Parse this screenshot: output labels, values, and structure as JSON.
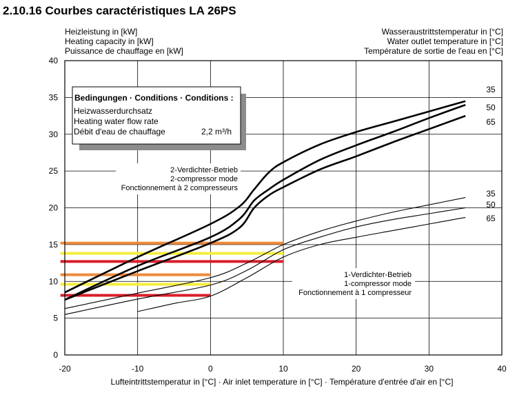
{
  "page": {
    "title": "2.10.16 Courbes caractéristiques LA 26PS",
    "ylabel_lines": [
      "Heizleistung in [kW]",
      "Heating capacity in [kW]",
      "Puissance de chauffage en [kW]"
    ],
    "right_label_lines": [
      "Wasseraustrittstemperatur in [°C]",
      "Water outlet temperature in [°C]",
      "Température de sortie de l'eau en [°C]"
    ]
  },
  "chart_data": {
    "type": "line",
    "title": "Courbes caractéristiques LA 26PS",
    "xlabel": "Lufteintrittstemperatur in [°C] · Air inlet temperature in [°C] · Température d'entrée d'air en [°C]",
    "ylabel": "Heizleistung in [kW] / Heating capacity in [kW] / Puissance de chauffage en [kW]",
    "xlim": [
      -20,
      40
    ],
    "ylim": [
      0,
      40
    ],
    "xticks": [
      -20,
      -10,
      0,
      10,
      20,
      30,
      40
    ],
    "yticks": [
      0,
      5,
      10,
      15,
      20,
      25,
      30,
      35,
      40
    ],
    "grid": true,
    "conditions_box": {
      "header": "Bedingungen · Conditions · Conditions :",
      "line1": "Heizwasserdurchsatz",
      "line2": "Heating water flow rate",
      "line3": "Débit d'eau de chauffage",
      "value": "2,2 m³/h"
    },
    "mode_labels": {
      "two_compressor": [
        "2-Verdichter-Betrieb",
        "2-compressor mode",
        "Fonctionnement à 2 compresseurs"
      ],
      "one_compressor": [
        "1-Verdichter-Betrieb",
        "1-compressor mode",
        "Fonctionnement à 1 compresseur"
      ]
    },
    "series": [
      {
        "name": "35",
        "mode": "2-compressor",
        "x": [
          -20,
          -10,
          0,
          4,
          6,
          8,
          10,
          15,
          20,
          25,
          30,
          35
        ],
        "y": [
          8.5,
          13.3,
          17.8,
          20.2,
          22.5,
          24.8,
          26.2,
          28.6,
          30.3,
          31.7,
          33.1,
          34.5
        ]
      },
      {
        "name": "50",
        "mode": "2-compressor",
        "x": [
          -20,
          -10,
          0,
          4,
          6,
          8,
          10,
          15,
          20,
          25,
          30,
          35
        ],
        "y": [
          7.5,
          12.1,
          16.0,
          18.5,
          21.0,
          22.5,
          23.8,
          26.5,
          28.5,
          30.3,
          32.2,
          34.0
        ]
      },
      {
        "name": "65",
        "mode": "2-compressor",
        "x": [
          -20,
          -10,
          0,
          4,
          6,
          8,
          10,
          15,
          20,
          25,
          30,
          35
        ],
        "y": [
          7.5,
          11.4,
          15.2,
          17.3,
          20.0,
          21.7,
          22.8,
          25.2,
          27.0,
          28.9,
          30.7,
          32.5
        ]
      },
      {
        "name": "35",
        "mode": "1-compressor",
        "x": [
          -20,
          -10,
          0,
          5,
          10,
          15,
          20,
          25,
          30,
          35
        ],
        "y": [
          6.3,
          8.4,
          10.5,
          12.5,
          15.0,
          16.8,
          18.2,
          19.4,
          20.4,
          21.4
        ]
      },
      {
        "name": "50",
        "mode": "1-compressor",
        "x": [
          -20,
          -10,
          0,
          5,
          10,
          15,
          20,
          25,
          30,
          35
        ],
        "y": [
          5.5,
          7.6,
          9.5,
          11.5,
          14.3,
          16.0,
          17.4,
          18.4,
          19.2,
          20.0
        ]
      },
      {
        "name": "65",
        "mode": "1-compressor",
        "x": [
          -10,
          -5,
          0,
          5,
          10,
          15,
          20,
          25,
          30,
          35
        ],
        "y": [
          5.9,
          7.0,
          8.0,
          10.5,
          13.3,
          15.0,
          16.0,
          16.9,
          17.8,
          18.7
        ]
      }
    ],
    "highlight_lines": [
      {
        "y": 15.2,
        "x_start": -20.6,
        "x_end": 10,
        "color": "#ef8a3c"
      },
      {
        "y": 13.8,
        "x_start": -20.6,
        "x_end": 10,
        "color": "#f5ee3c"
      },
      {
        "y": 12.7,
        "x_start": -20.6,
        "x_end": 10,
        "color": "#d81f2a"
      },
      {
        "y": 10.9,
        "x_start": -20.6,
        "x_end": 0,
        "color": "#ef8a3c"
      },
      {
        "y": 9.6,
        "x_start": -20.6,
        "x_end": 0,
        "color": "#f5ee3c"
      },
      {
        "y": 8.1,
        "x_start": -20.6,
        "x_end": 0,
        "color": "#d81f2a"
      }
    ]
  }
}
